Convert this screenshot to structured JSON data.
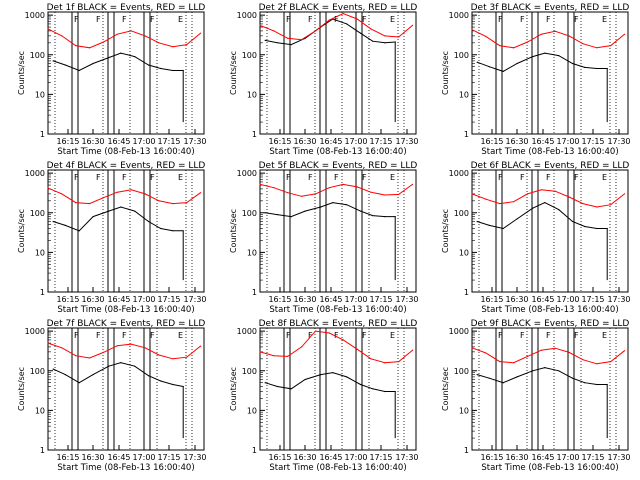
{
  "layout": {
    "rows": 3,
    "cols": 3
  },
  "common": {
    "ylabel": "Counts/sec",
    "xlabel": "Start Time (08-Feb-13 16:00:40)",
    "x_ticks": [
      "16:15",
      "16:30",
      "16:45",
      "17:00",
      "17:15",
      "17:30"
    ],
    "y_ticks": [
      "1",
      "10",
      "100",
      "1000"
    ],
    "event_markers": [
      "F",
      "F",
      "F",
      "F",
      "E"
    ],
    "colors": {
      "events": "#000000",
      "lld": "#ff0000",
      "axes": "#000000"
    }
  },
  "chart_data": [
    {
      "type": "line",
      "title": "Det 1f BLACK = Events, RED = LLD",
      "yscale": "log",
      "ylim": [
        1,
        1200
      ],
      "xlim_min": [
        10,
        100
      ],
      "series": [
        {
          "name": "Events",
          "color": "#000000",
          "x": [
            13,
            20,
            28,
            36,
            45,
            52,
            60,
            68,
            75,
            82,
            88
          ],
          "y": [
            70,
            55,
            40,
            60,
            85,
            110,
            90,
            55,
            45,
            40,
            40
          ]
        },
        {
          "name": "LLD",
          "color": "#ff0000",
          "x": [
            10,
            18,
            26,
            34,
            42,
            50,
            58,
            66,
            74,
            82,
            90,
            98
          ],
          "y": [
            450,
            300,
            170,
            150,
            210,
            330,
            400,
            300,
            200,
            160,
            180,
            350
          ]
        }
      ]
    },
    {
      "type": "line",
      "title": "Det 2f BLACK = Events, RED = LLD",
      "yscale": "log",
      "ylim": [
        1,
        1200
      ],
      "xlim_min": [
        10,
        100
      ],
      "series": [
        {
          "name": "Events",
          "color": "#000000",
          "x": [
            13,
            20,
            28,
            36,
            45,
            52,
            60,
            68,
            75,
            82,
            88
          ],
          "y": [
            230,
            200,
            180,
            260,
            500,
            800,
            600,
            350,
            220,
            200,
            210
          ]
        },
        {
          "name": "LLD",
          "color": "#ff0000",
          "x": [
            10,
            18,
            26,
            34,
            42,
            50,
            58,
            66,
            74,
            82,
            90,
            98
          ],
          "y": [
            550,
            400,
            260,
            240,
            400,
            750,
            1100,
            800,
            450,
            300,
            280,
            550
          ]
        }
      ]
    },
    {
      "type": "line",
      "title": "Det 3f BLACK = Events, RED = LLD",
      "yscale": "log",
      "ylim": [
        1,
        1200
      ],
      "xlim_min": [
        10,
        100
      ],
      "series": [
        {
          "name": "Events",
          "color": "#000000",
          "x": [
            13,
            20,
            28,
            36,
            45,
            52,
            60,
            68,
            75,
            82,
            88
          ],
          "y": [
            65,
            50,
            38,
            60,
            90,
            110,
            95,
            60,
            48,
            45,
            45
          ]
        },
        {
          "name": "LLD",
          "color": "#ff0000",
          "x": [
            10,
            18,
            26,
            34,
            42,
            50,
            58,
            66,
            74,
            82,
            90,
            98
          ],
          "y": [
            430,
            290,
            170,
            150,
            210,
            330,
            390,
            300,
            190,
            150,
            170,
            330
          ]
        }
      ]
    },
    {
      "type": "line",
      "title": "Det 4f BLACK = Events, RED = LLD",
      "yscale": "log",
      "ylim": [
        1,
        1200
      ],
      "xlim_min": [
        10,
        100
      ],
      "series": [
        {
          "name": "Events",
          "color": "#000000",
          "x": [
            13,
            20,
            28,
            36,
            45,
            52,
            60,
            68,
            75,
            82,
            88
          ],
          "y": [
            60,
            48,
            35,
            80,
            110,
            140,
            110,
            60,
            40,
            35,
            35
          ]
        },
        {
          "name": "LLD",
          "color": "#ff0000",
          "x": [
            10,
            18,
            26,
            34,
            42,
            50,
            58,
            66,
            74,
            82,
            90,
            98
          ],
          "y": [
            420,
            300,
            180,
            170,
            240,
            330,
            380,
            300,
            200,
            170,
            180,
            320
          ]
        }
      ]
    },
    {
      "type": "line",
      "title": "Det 5f BLACK = Events, RED = LLD",
      "yscale": "log",
      "ylim": [
        1,
        1200
      ],
      "xlim_min": [
        10,
        100
      ],
      "series": [
        {
          "name": "Events",
          "color": "#000000",
          "x": [
            13,
            20,
            28,
            36,
            45,
            52,
            60,
            68,
            75,
            82,
            88
          ],
          "y": [
            100,
            90,
            80,
            110,
            140,
            180,
            160,
            110,
            85,
            80,
            80
          ]
        },
        {
          "name": "LLD",
          "color": "#ff0000",
          "x": [
            10,
            18,
            26,
            34,
            42,
            50,
            58,
            66,
            74,
            82,
            90,
            98
          ],
          "y": [
            520,
            430,
            320,
            260,
            300,
            430,
            520,
            450,
            330,
            280,
            290,
            520
          ]
        }
      ]
    },
    {
      "type": "line",
      "title": "Det 6f BLACK = Events, RED = LLD",
      "yscale": "log",
      "ylim": [
        1,
        1200
      ],
      "xlim_min": [
        10,
        100
      ],
      "series": [
        {
          "name": "Events",
          "color": "#000000",
          "x": [
            13,
            20,
            28,
            36,
            45,
            52,
            60,
            68,
            75,
            82,
            88
          ],
          "y": [
            60,
            48,
            40,
            70,
            130,
            180,
            120,
            60,
            45,
            40,
            40
          ]
        },
        {
          "name": "LLD",
          "color": "#ff0000",
          "x": [
            10,
            18,
            26,
            34,
            42,
            50,
            58,
            66,
            74,
            82,
            90,
            98
          ],
          "y": [
            300,
            220,
            170,
            190,
            300,
            380,
            350,
            250,
            170,
            140,
            160,
            300
          ]
        }
      ]
    },
    {
      "type": "line",
      "title": "Det 7f BLACK = Events, RED = LLD",
      "yscale": "log",
      "ylim": [
        1,
        1200
      ],
      "xlim_min": [
        10,
        100
      ],
      "series": [
        {
          "name": "Events",
          "color": "#000000",
          "x": [
            13,
            20,
            28,
            36,
            45,
            52,
            60,
            68,
            75,
            82,
            88
          ],
          "y": [
            110,
            80,
            50,
            80,
            130,
            160,
            130,
            75,
            55,
            45,
            40
          ]
        },
        {
          "name": "LLD",
          "color": "#ff0000",
          "x": [
            10,
            18,
            26,
            34,
            42,
            50,
            58,
            66,
            74,
            82,
            90,
            98
          ],
          "y": [
            500,
            380,
            240,
            210,
            290,
            430,
            470,
            380,
            250,
            200,
            220,
            420
          ]
        }
      ]
    },
    {
      "type": "line",
      "title": "Det 8f BLACK = Events, RED = LLD",
      "yscale": "log",
      "ylim": [
        1,
        1200
      ],
      "xlim_min": [
        10,
        100
      ],
      "series": [
        {
          "name": "Events",
          "color": "#000000",
          "x": [
            13,
            20,
            28,
            36,
            45,
            52,
            60,
            68,
            75,
            82,
            88
          ],
          "y": [
            50,
            40,
            35,
            60,
            80,
            90,
            70,
            45,
            35,
            30,
            30
          ]
        },
        {
          "name": "LLD",
          "color": "#ff0000",
          "x": [
            10,
            18,
            26,
            34,
            42,
            50,
            58,
            66,
            74,
            82,
            90,
            98
          ],
          "y": [
            300,
            240,
            230,
            400,
            1000,
            900,
            600,
            350,
            200,
            160,
            170,
            330
          ]
        }
      ]
    },
    {
      "type": "line",
      "title": "Det 9f BLACK = Events, RED = LLD",
      "yscale": "log",
      "ylim": [
        1,
        1200
      ],
      "xlim_min": [
        10,
        100
      ],
      "series": [
        {
          "name": "Events",
          "color": "#000000",
          "x": [
            13,
            20,
            28,
            36,
            45,
            52,
            60,
            68,
            75,
            82,
            88
          ],
          "y": [
            80,
            65,
            50,
            70,
            100,
            120,
            100,
            65,
            50,
            45,
            45
          ]
        },
        {
          "name": "LLD",
          "color": "#ff0000",
          "x": [
            10,
            18,
            26,
            34,
            42,
            50,
            58,
            66,
            74,
            82,
            90,
            98
          ],
          "y": [
            380,
            280,
            170,
            160,
            230,
            330,
            370,
            290,
            190,
            150,
            170,
            320
          ]
        }
      ]
    }
  ]
}
